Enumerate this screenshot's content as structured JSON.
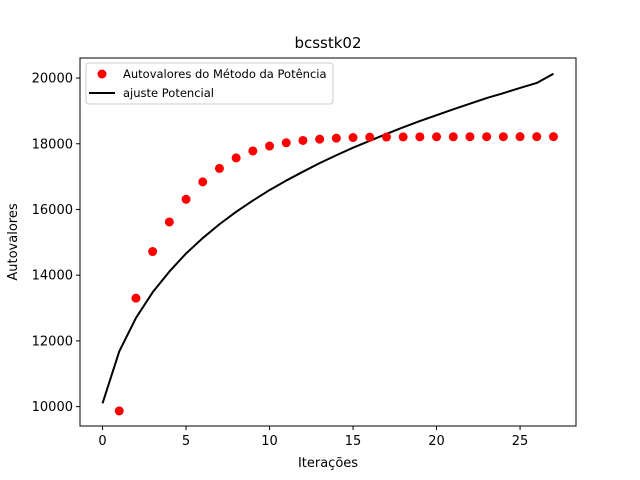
{
  "chart_data": {
    "type": "scatter",
    "title": "bcsstk02",
    "xlabel": "Iterações",
    "ylabel": "Autovalores",
    "xlim": [
      -1.35,
      28.35
    ],
    "ylim": [
      9410,
      20610
    ],
    "xticks": [
      0,
      5,
      10,
      15,
      20,
      25
    ],
    "yticks": [
      10000,
      12000,
      14000,
      16000,
      18000,
      20000
    ],
    "grid": false,
    "legend_position": "upper-left",
    "series": [
      {
        "name": "Autovalores do Método da Potência",
        "kind": "scatter",
        "color": "#ff0000",
        "x": [
          1,
          2,
          3,
          4,
          5,
          6,
          7,
          8,
          9,
          10,
          11,
          12,
          13,
          14,
          15,
          16,
          17,
          18,
          19,
          20,
          21,
          22,
          23,
          24,
          25,
          26,
          27
        ],
        "y": [
          9870,
          13300,
          14720,
          15620,
          16310,
          16840,
          17250,
          17570,
          17780,
          17930,
          18030,
          18100,
          18140,
          18170,
          18190,
          18200,
          18205,
          18208,
          18210,
          18212,
          18213,
          18214,
          18215,
          18215,
          18216,
          18216,
          18216
        ]
      },
      {
        "name": "ajuste Potencial",
        "kind": "line",
        "color": "#000000",
        "x": [
          0,
          1,
          2,
          3,
          4,
          5,
          6,
          7,
          8,
          9,
          10,
          11,
          12,
          13,
          14,
          15,
          16,
          17,
          18,
          19,
          20,
          21,
          22,
          23,
          24,
          25,
          26,
          27
        ],
        "y": [
          10100,
          11680,
          12700,
          13480,
          14110,
          14660,
          15130,
          15550,
          15930,
          16270,
          16590,
          16880,
          17150,
          17410,
          17650,
          17880,
          18090,
          18300,
          18500,
          18690,
          18870,
          19050,
          19220,
          19390,
          19540,
          19700,
          19850,
          20130
        ]
      }
    ]
  }
}
